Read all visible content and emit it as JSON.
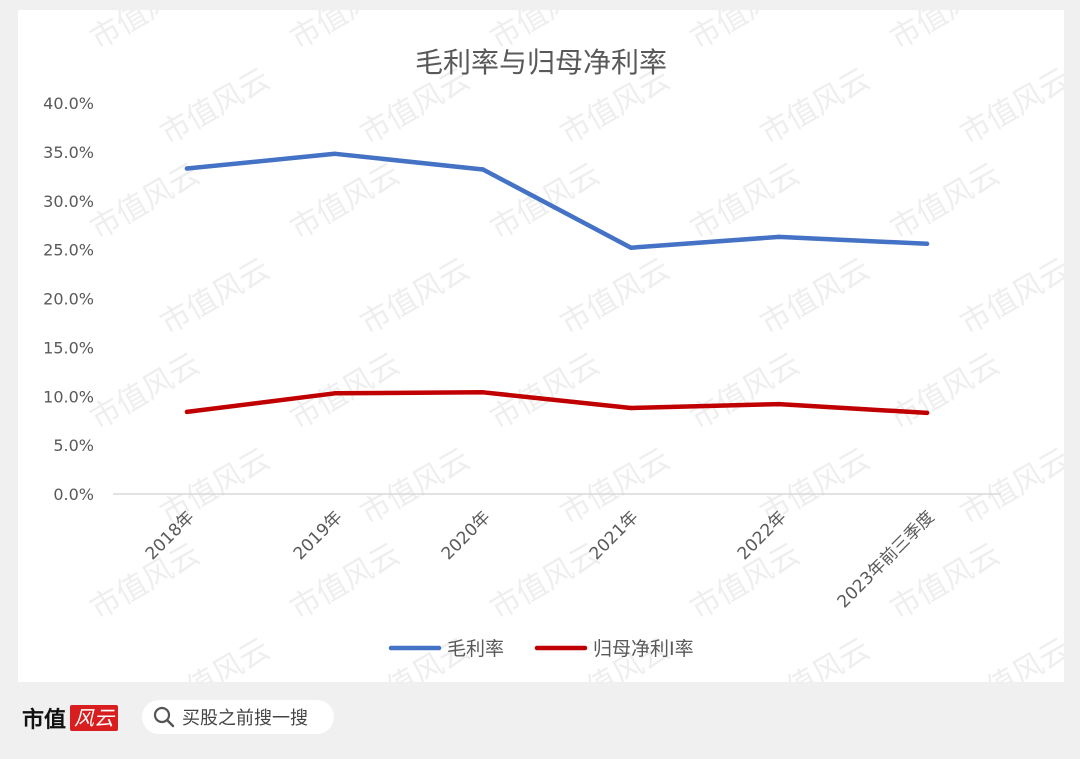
{
  "chart_data": {
    "type": "line",
    "title": "毛利率与归母净利率",
    "categories": [
      "2018年",
      "2019年",
      "2020年",
      "2021年",
      "2022年",
      "2023年前三季度"
    ],
    "y_ticks": [
      "0.0%",
      "5.0%",
      "10.0%",
      "15.0%",
      "20.0%",
      "25.0%",
      "30.0%",
      "35.0%",
      "40.0%"
    ],
    "ylim": [
      0,
      40
    ],
    "grid": false,
    "legend_position": "bottom",
    "series": [
      {
        "name": "毛利率",
        "color": "#4472c4",
        "values": [
          33.3,
          34.8,
          33.2,
          25.2,
          26.3,
          25.6
        ]
      },
      {
        "name": "归母净利I率",
        "color": "#c00000",
        "values": [
          8.4,
          10.3,
          10.4,
          8.8,
          9.2,
          8.3
        ]
      }
    ]
  },
  "watermark": "市值风云",
  "footer": {
    "brand": "市值",
    "brand_mark": "风云",
    "search_placeholder": "买股之前搜一搜"
  }
}
